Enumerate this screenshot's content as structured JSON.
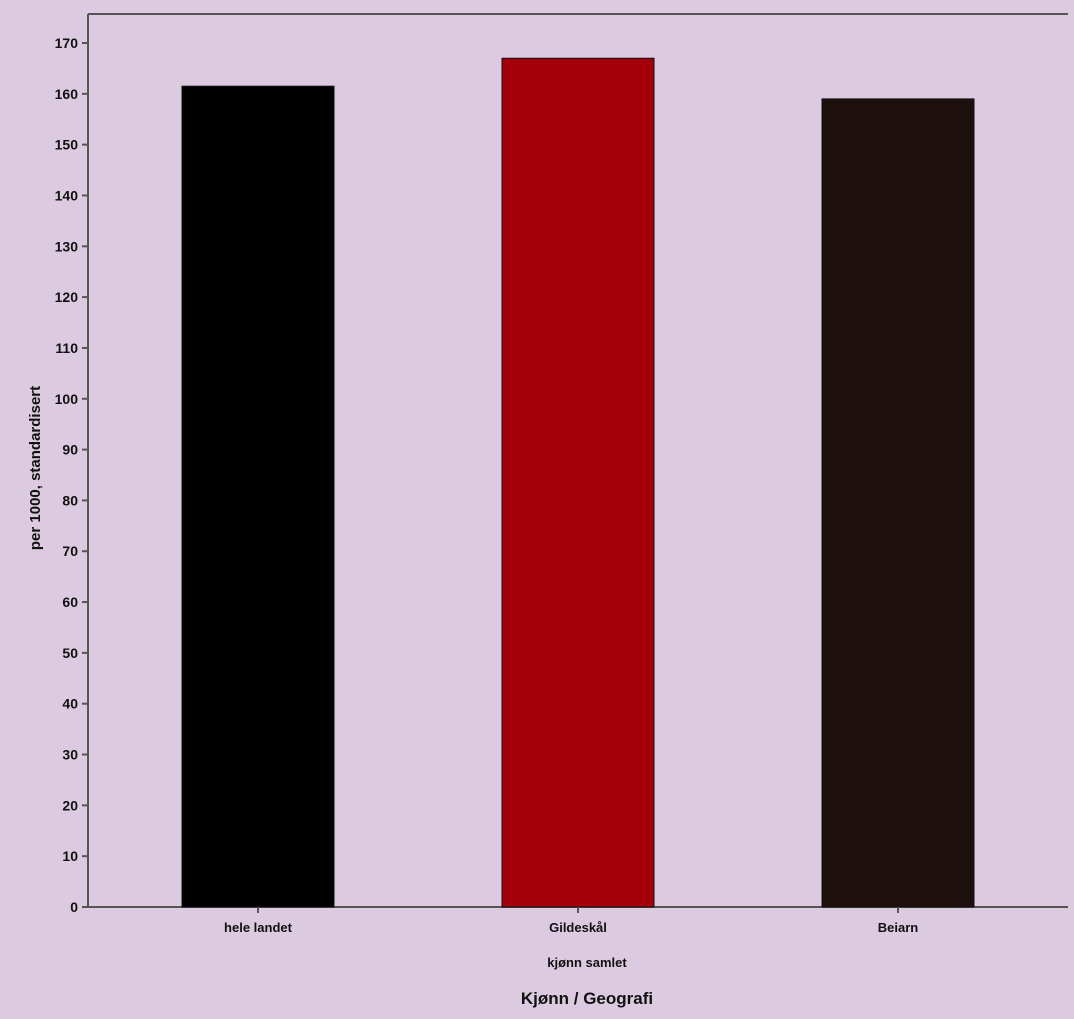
{
  "chart_data": {
    "type": "bar",
    "title": "",
    "ylabel": "per 1000, standardisert",
    "xlabel": "Kjønn / Geografi",
    "group_label": "kjønn samlet",
    "categories": [
      "hele landet",
      "Gildeskål",
      "Beiarn"
    ],
    "values": [
      161.5,
      167,
      159
    ],
    "bar_colors": [
      "#000000",
      "#a3000b",
      "#1c0f0c"
    ],
    "ylim": [
      0,
      170
    ],
    "yticks": [
      0,
      10,
      20,
      30,
      40,
      50,
      60,
      70,
      80,
      90,
      100,
      110,
      120,
      130,
      140,
      150,
      160,
      170
    ],
    "grid": false,
    "legend": "none",
    "background_color": "#dccbe0"
  }
}
